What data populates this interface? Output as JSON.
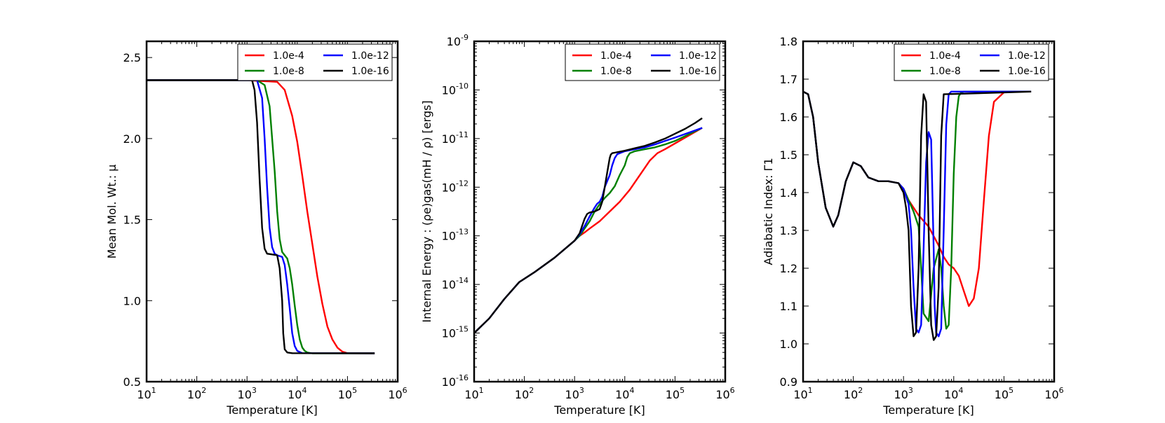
{
  "colors": {
    "1.0e-4": "#ff0000",
    "1.0e-8": "#008000",
    "1.0e-12": "#0000ff",
    "1.0e-16": "#000000"
  },
  "legend": [
    "1.0e-4",
    "1.0e-8",
    "1.0e-12",
    "1.0e-16"
  ],
  "chart_data": [
    {
      "type": "line",
      "id": "mu",
      "xlabel": "Temperature [K]",
      "ylabel": "Mean Mol. Wt.: μ",
      "xscale": "log",
      "yscale": "linear",
      "xlim_log10": [
        1,
        6
      ],
      "ylim": [
        0.5,
        2.6
      ],
      "x_ticks": [
        {
          "base": "10",
          "exp": "1"
        },
        {
          "base": "10",
          "exp": "2"
        },
        {
          "base": "10",
          "exp": "3"
        },
        {
          "base": "10",
          "exp": "4"
        },
        {
          "base": "10",
          "exp": "5"
        },
        {
          "base": "10",
          "exp": "6"
        }
      ],
      "y_ticks": [
        {
          "value": 0.5,
          "label": "0.5"
        },
        {
          "value": 1.0,
          "label": "1.0"
        },
        {
          "value": 1.5,
          "label": "1.5"
        },
        {
          "value": 2.0,
          "label": "2.0"
        },
        {
          "value": 2.5,
          "label": "2.5"
        }
      ],
      "legend_position": "top-right",
      "series": [
        {
          "name": "1.0e-4",
          "log10T": [
            1.0,
            3.0,
            3.6,
            3.75,
            3.9,
            4.0,
            4.1,
            4.2,
            4.3,
            4.4,
            4.5,
            4.6,
            4.7,
            4.8,
            4.9,
            5.0,
            5.2,
            5.54
          ],
          "values": [
            2.36,
            2.36,
            2.35,
            2.3,
            2.14,
            1.98,
            1.77,
            1.55,
            1.35,
            1.15,
            0.98,
            0.84,
            0.76,
            0.71,
            0.685,
            0.676,
            0.675,
            0.675
          ]
        },
        {
          "name": "1.0e-8",
          "log10T": [
            1.0,
            3.2,
            3.35,
            3.45,
            3.55,
            3.6,
            3.65,
            3.7,
            3.8,
            3.85,
            3.9,
            3.95,
            4.0,
            4.05,
            4.1,
            4.15,
            4.2,
            4.3,
            5.54
          ],
          "values": [
            2.36,
            2.36,
            2.33,
            2.2,
            1.8,
            1.55,
            1.38,
            1.3,
            1.26,
            1.2,
            1.1,
            0.97,
            0.85,
            0.76,
            0.71,
            0.69,
            0.68,
            0.675,
            0.675
          ]
        },
        {
          "name": "1.0e-12",
          "log10T": [
            1.0,
            3.2,
            3.3,
            3.35,
            3.4,
            3.45,
            3.5,
            3.55,
            3.6,
            3.7,
            3.75,
            3.8,
            3.85,
            3.9,
            3.95,
            4.0,
            4.1,
            5.54
          ],
          "values": [
            2.36,
            2.36,
            2.25,
            2.0,
            1.7,
            1.45,
            1.33,
            1.29,
            1.28,
            1.27,
            1.22,
            1.1,
            0.95,
            0.8,
            0.72,
            0.69,
            0.676,
            0.675
          ]
        },
        {
          "name": "1.0e-16",
          "log10T": [
            1.0,
            3.1,
            3.15,
            3.2,
            3.25,
            3.3,
            3.35,
            3.4,
            3.5,
            3.6,
            3.65,
            3.7,
            3.72,
            3.75,
            3.8,
            3.9,
            5.54
          ],
          "values": [
            2.36,
            2.36,
            2.3,
            2.1,
            1.75,
            1.45,
            1.32,
            1.29,
            1.285,
            1.28,
            1.2,
            1.0,
            0.8,
            0.7,
            0.68,
            0.676,
            0.675
          ]
        }
      ]
    },
    {
      "type": "line",
      "id": "energy",
      "xlabel": "Temperature [K]",
      "ylabel": "Internal Energy : (ρe)gas(mH / ρ) [ergs]",
      "xscale": "log",
      "yscale": "log",
      "xlim_log10": [
        1,
        6
      ],
      "ylim_log10": [
        -16,
        -9
      ],
      "x_ticks": [
        {
          "base": "10",
          "exp": "1"
        },
        {
          "base": "10",
          "exp": "2"
        },
        {
          "base": "10",
          "exp": "3"
        },
        {
          "base": "10",
          "exp": "4"
        },
        {
          "base": "10",
          "exp": "5"
        },
        {
          "base": "10",
          "exp": "6"
        }
      ],
      "y_ticks": [
        {
          "base": "10",
          "exp": "-16"
        },
        {
          "base": "10",
          "exp": "-15"
        },
        {
          "base": "10",
          "exp": "-14"
        },
        {
          "base": "10",
          "exp": "-13"
        },
        {
          "base": "10",
          "exp": "-12"
        },
        {
          "base": "10",
          "exp": "-11"
        },
        {
          "base": "10",
          "exp": "-10"
        },
        {
          "base": "10",
          "exp": "-9"
        }
      ],
      "legend_position": "top-right",
      "series": [
        {
          "name": "1.0e-4",
          "log10T": [
            1.0,
            1.3,
            1.6,
            1.9,
            2.2,
            2.6,
            3.0,
            3.1,
            3.2,
            3.3,
            3.5,
            3.7,
            3.9,
            4.1,
            4.3,
            4.5,
            4.65,
            4.8,
            5.0,
            5.54
          ],
          "log10E": [
            -15.0,
            -14.7,
            -14.3,
            -13.95,
            -13.75,
            -13.45,
            -13.1,
            -13.0,
            -12.93,
            -12.85,
            -12.7,
            -12.5,
            -12.3,
            -12.05,
            -11.75,
            -11.45,
            -11.3,
            -11.22,
            -11.1,
            -10.78
          ]
        },
        {
          "name": "1.0e-8",
          "log10T": [
            1.0,
            1.3,
            1.6,
            1.9,
            2.2,
            2.6,
            3.0,
            3.1,
            3.2,
            3.3,
            3.4,
            3.5,
            3.6,
            3.7,
            3.8,
            3.9,
            4.0,
            4.05,
            4.1,
            4.2,
            4.4,
            4.6,
            4.8,
            5.0,
            5.54
          ],
          "log10E": [
            -15.0,
            -14.7,
            -14.3,
            -13.95,
            -13.75,
            -13.45,
            -13.1,
            -13.0,
            -12.85,
            -12.7,
            -12.5,
            -12.35,
            -12.22,
            -12.12,
            -11.98,
            -11.75,
            -11.55,
            -11.38,
            -11.3,
            -11.26,
            -11.22,
            -11.18,
            -11.12,
            -11.05,
            -10.78
          ]
        },
        {
          "name": "1.0e-12",
          "log10T": [
            1.0,
            1.3,
            1.6,
            1.9,
            2.2,
            2.6,
            3.0,
            3.1,
            3.2,
            3.3,
            3.4,
            3.45,
            3.5,
            3.55,
            3.6,
            3.7,
            3.75,
            3.8,
            3.85,
            3.9,
            4.0,
            4.2,
            4.4,
            4.6,
            4.8,
            5.0,
            5.54
          ],
          "log10E": [
            -15.0,
            -14.7,
            -14.3,
            -13.95,
            -13.75,
            -13.45,
            -13.1,
            -12.97,
            -12.8,
            -12.6,
            -12.42,
            -12.34,
            -12.3,
            -12.2,
            -12.0,
            -11.75,
            -11.55,
            -11.4,
            -11.32,
            -11.3,
            -11.26,
            -11.22,
            -11.18,
            -11.12,
            -11.05,
            -10.98,
            -10.78
          ]
        },
        {
          "name": "1.0e-16",
          "log10T": [
            1.0,
            1.3,
            1.6,
            1.9,
            2.2,
            2.6,
            3.0,
            3.1,
            3.15,
            3.2,
            3.25,
            3.3,
            3.4,
            3.5,
            3.55,
            3.6,
            3.65,
            3.7,
            3.72,
            3.75,
            3.8,
            4.0,
            4.2,
            4.4,
            4.6,
            4.8,
            5.0,
            5.2,
            5.4,
            5.54
          ],
          "log10E": [
            -15.0,
            -14.7,
            -14.3,
            -13.95,
            -13.75,
            -13.45,
            -13.1,
            -12.95,
            -12.8,
            -12.65,
            -12.55,
            -12.52,
            -12.5,
            -12.45,
            -12.3,
            -12.0,
            -11.7,
            -11.4,
            -11.33,
            -11.3,
            -11.29,
            -11.25,
            -11.2,
            -11.15,
            -11.08,
            -11.0,
            -10.9,
            -10.8,
            -10.68,
            -10.58
          ]
        }
      ]
    },
    {
      "type": "line",
      "id": "gamma",
      "xlabel": "Temperature [K]",
      "ylabel": "Adiabatic Index: Γ1",
      "xscale": "log",
      "yscale": "linear",
      "xlim_log10": [
        1,
        6
      ],
      "ylim": [
        0.9,
        1.8
      ],
      "x_ticks": [
        {
          "base": "10",
          "exp": "1"
        },
        {
          "base": "10",
          "exp": "2"
        },
        {
          "base": "10",
          "exp": "3"
        },
        {
          "base": "10",
          "exp": "4"
        },
        {
          "base": "10",
          "exp": "5"
        },
        {
          "base": "10",
          "exp": "6"
        }
      ],
      "y_ticks": [
        {
          "value": 0.9,
          "label": "0.9"
        },
        {
          "value": 1.0,
          "label": "1.0"
        },
        {
          "value": 1.1,
          "label": "1.1"
        },
        {
          "value": 1.2,
          "label": "1.2"
        },
        {
          "value": 1.3,
          "label": "1.3"
        },
        {
          "value": 1.4,
          "label": "1.4"
        },
        {
          "value": 1.5,
          "label": "1.5"
        },
        {
          "value": 1.6,
          "label": "1.6"
        },
        {
          "value": 1.7,
          "label": "1.7"
        },
        {
          "value": 1.8,
          "label": "1.8"
        }
      ],
      "legend_position": "top-right",
      "series": [
        {
          "name": "1.0e-4",
          "log10T": [
            1.0,
            1.1,
            1.2,
            1.3,
            1.45,
            1.6,
            1.7,
            1.85,
            2.0,
            2.15,
            2.3,
            2.5,
            2.7,
            2.9,
            3.0,
            3.1,
            3.3,
            3.5,
            3.7,
            3.8,
            3.9,
            4.0,
            4.1,
            4.2,
            4.3,
            4.4,
            4.5,
            4.6,
            4.7,
            4.8,
            5.0,
            5.2,
            5.54
          ],
          "values": [
            1.667,
            1.66,
            1.6,
            1.48,
            1.36,
            1.31,
            1.34,
            1.43,
            1.48,
            1.47,
            1.44,
            1.43,
            1.43,
            1.425,
            1.41,
            1.38,
            1.34,
            1.31,
            1.26,
            1.23,
            1.21,
            1.2,
            1.18,
            1.14,
            1.1,
            1.12,
            1.2,
            1.38,
            1.55,
            1.64,
            1.665,
            1.667,
            1.667
          ]
        },
        {
          "name": "1.0e-8",
          "log10T": [
            1.0,
            1.1,
            1.2,
            1.3,
            1.45,
            1.6,
            1.7,
            1.85,
            2.0,
            2.15,
            2.3,
            2.5,
            2.7,
            2.9,
            3.0,
            3.1,
            3.2,
            3.3,
            3.35,
            3.4,
            3.5,
            3.6,
            3.7,
            3.75,
            3.8,
            3.85,
            3.9,
            3.95,
            4.0,
            4.05,
            4.1,
            4.15,
            4.2,
            4.25,
            4.3,
            4.35,
            4.4,
            4.5,
            5.54
          ],
          "values": [
            1.667,
            1.66,
            1.6,
            1.48,
            1.36,
            1.31,
            1.34,
            1.43,
            1.48,
            1.47,
            1.44,
            1.43,
            1.43,
            1.425,
            1.41,
            1.38,
            1.35,
            1.31,
            1.2,
            1.08,
            1.06,
            1.2,
            1.25,
            1.2,
            1.1,
            1.04,
            1.05,
            1.2,
            1.45,
            1.6,
            1.655,
            1.665,
            1.667,
            1.667,
            1.667,
            1.667,
            1.667,
            1.667,
            1.667
          ]
        },
        {
          "name": "1.0e-12",
          "log10T": [
            1.0,
            1.1,
            1.2,
            1.3,
            1.45,
            1.6,
            1.7,
            1.85,
            2.0,
            2.15,
            2.3,
            2.5,
            2.7,
            2.9,
            3.0,
            3.1,
            3.15,
            3.2,
            3.25,
            3.3,
            3.35,
            3.4,
            3.45,
            3.5,
            3.55,
            3.6,
            3.62,
            3.65,
            3.7,
            3.75,
            3.8,
            3.85,
            3.9,
            3.95,
            4.0,
            5.54
          ],
          "values": [
            1.667,
            1.66,
            1.6,
            1.48,
            1.36,
            1.31,
            1.34,
            1.43,
            1.48,
            1.47,
            1.44,
            1.43,
            1.43,
            1.425,
            1.41,
            1.37,
            1.3,
            1.15,
            1.04,
            1.03,
            1.05,
            1.25,
            1.48,
            1.56,
            1.54,
            1.25,
            1.1,
            1.03,
            1.02,
            1.04,
            1.3,
            1.58,
            1.66,
            1.667,
            1.667,
            1.667
          ]
        },
        {
          "name": "1.0e-16",
          "log10T": [
            1.0,
            1.1,
            1.2,
            1.3,
            1.45,
            1.6,
            1.7,
            1.85,
            2.0,
            2.15,
            2.3,
            2.5,
            2.7,
            2.9,
            3.0,
            3.05,
            3.1,
            3.15,
            3.2,
            3.25,
            3.3,
            3.35,
            3.4,
            3.45,
            3.5,
            3.55,
            3.6,
            3.65,
            3.7,
            3.75,
            3.8,
            5.54
          ],
          "values": [
            1.667,
            1.66,
            1.6,
            1.48,
            1.36,
            1.31,
            1.34,
            1.43,
            1.48,
            1.47,
            1.44,
            1.43,
            1.43,
            1.425,
            1.4,
            1.36,
            1.3,
            1.1,
            1.02,
            1.03,
            1.2,
            1.55,
            1.66,
            1.64,
            1.3,
            1.05,
            1.01,
            1.02,
            1.15,
            1.55,
            1.66,
            1.667
          ]
        }
      ]
    }
  ]
}
